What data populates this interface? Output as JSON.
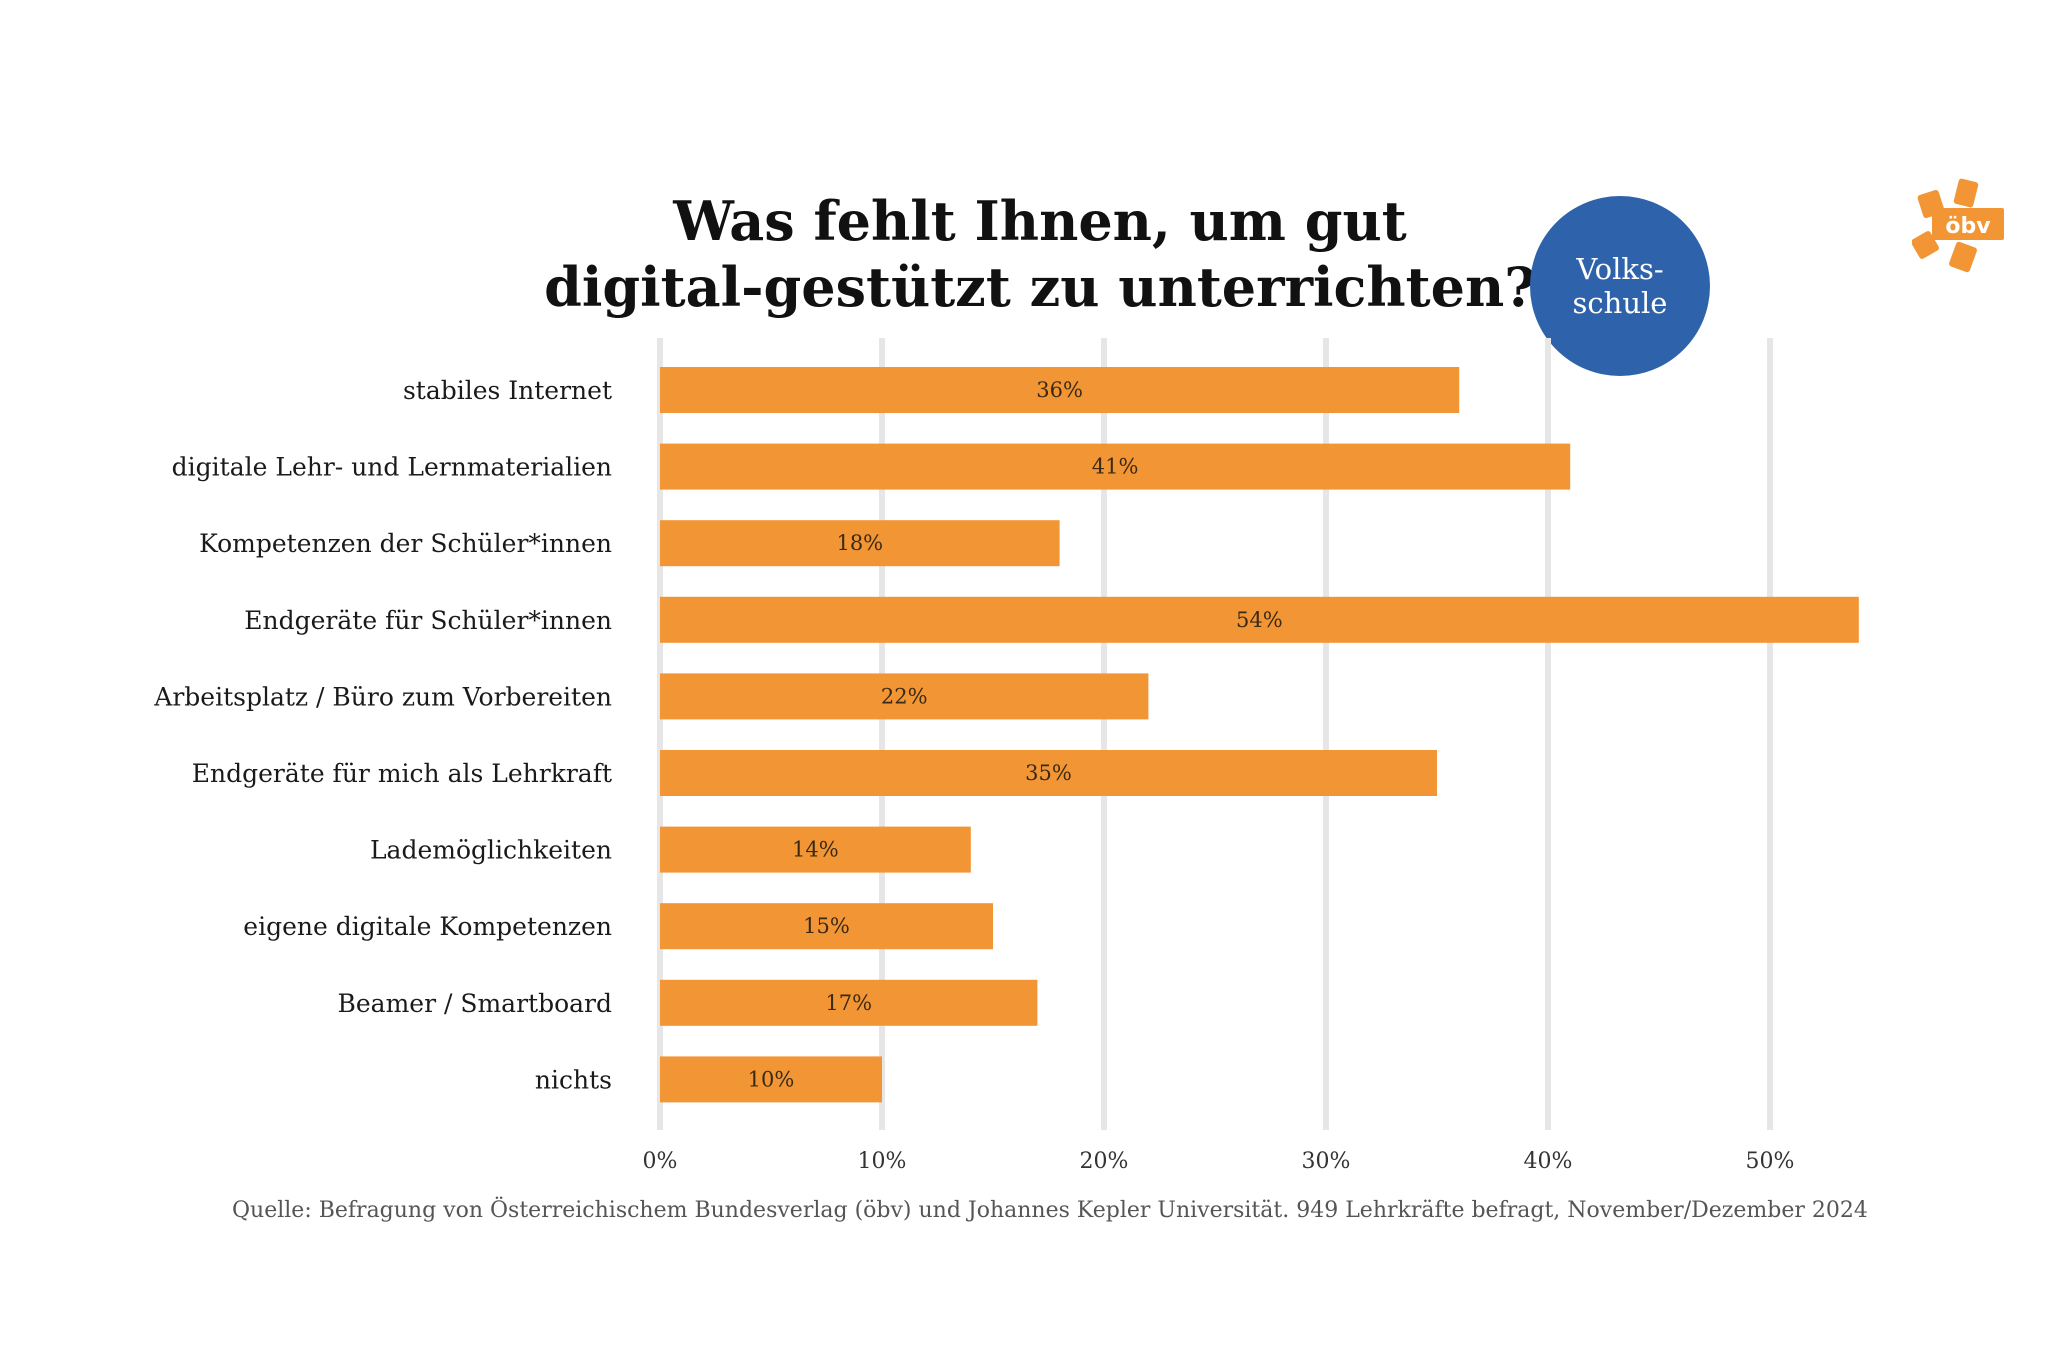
{
  "chart_data": {
    "type": "bar",
    "orientation": "horizontal",
    "title_lines": [
      "Was fehlt Ihnen, um gut",
      "digital-gestützt zu unterrichten?"
    ],
    "badge_lines": [
      "Volks-",
      "schule"
    ],
    "logo_text": "öbv",
    "categories": [
      "stabiles Internet",
      "digitale Lehr- und Lernmaterialien",
      "Kompetenzen der Schüler*innen",
      "Endgeräte für Schüler*innen",
      "Arbeitsplatz / Büro zum Vorbereiten",
      "Endgeräte für mich als Lehrkraft",
      "Lademöglichkeiten",
      "eigene digitale Kompetenzen",
      "Beamer / Smartboard",
      "nichts"
    ],
    "values": [
      36,
      41,
      18,
      54,
      22,
      35,
      14,
      15,
      17,
      10
    ],
    "value_labels": [
      "36%",
      "41%",
      "18%",
      "54%",
      "22%",
      "35%",
      "14%",
      "15%",
      "17%",
      "10%"
    ],
    "x_ticks": [
      0,
      10,
      20,
      30,
      40,
      50
    ],
    "x_tick_labels": [
      "0%",
      "10%",
      "20%",
      "30%",
      "40%",
      "50%"
    ],
    "xlim": [
      0,
      55
    ],
    "grid": "vertical",
    "bar_color": "#f29535",
    "grid_color": "#e6e6e6",
    "source": "Quelle: Befragung von Österreichischem Bundesverlag (öbv) und Johannes Kepler Universität. 949 Lehrkräfte befragt, November/Dezember 2024"
  },
  "colors": {
    "badge": "#2e63ab",
    "logo": "#f29535"
  }
}
